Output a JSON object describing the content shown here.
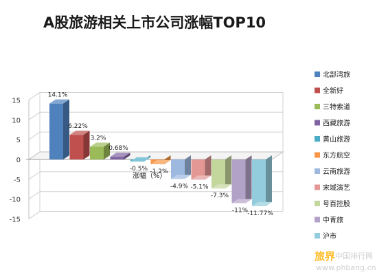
{
  "chart_data": {
    "type": "bar",
    "title": "A股旅游相关上市公司涨幅TOP10",
    "xlabel": "涨幅（%）",
    "ylabel": "",
    "ylim": [
      -15,
      15
    ],
    "yticks": [
      15,
      10,
      5,
      0,
      -5,
      -10,
      -15
    ],
    "grid": true,
    "legend_position": "right",
    "categories": [
      "北部湾旅",
      "全新好",
      "三特索道",
      "西藏旅游",
      "黄山旅游",
      "东方航空",
      "云南旅游",
      "宋城演艺",
      "号百控股",
      "中青旅",
      "沪市"
    ],
    "values": [
      14.1,
      6.22,
      3.2,
      0.68,
      -0.5,
      -1.2,
      -4.9,
      -5.1,
      -7.3,
      -11,
      -11.77
    ],
    "data_labels": [
      "14.1%",
      "6.22%",
      "3.2%",
      "0.68%",
      "-0.5%",
      "-1.2%",
      "-4.9%",
      "-5.1%",
      "-7.3%",
      "-11%",
      "-11.77%"
    ],
    "colors": [
      "#4f81bd",
      "#c0504d",
      "#9bbb59",
      "#8064a2",
      "#4bacc6",
      "#f79646",
      "#9db9e0",
      "#e39896",
      "#c3d69b",
      "#b3a2c7",
      "#93cddd"
    ]
  },
  "watermark": {
    "brand": "旅界",
    "site_top": "中国排行网",
    "site_url": "www.phbang.cn"
  }
}
